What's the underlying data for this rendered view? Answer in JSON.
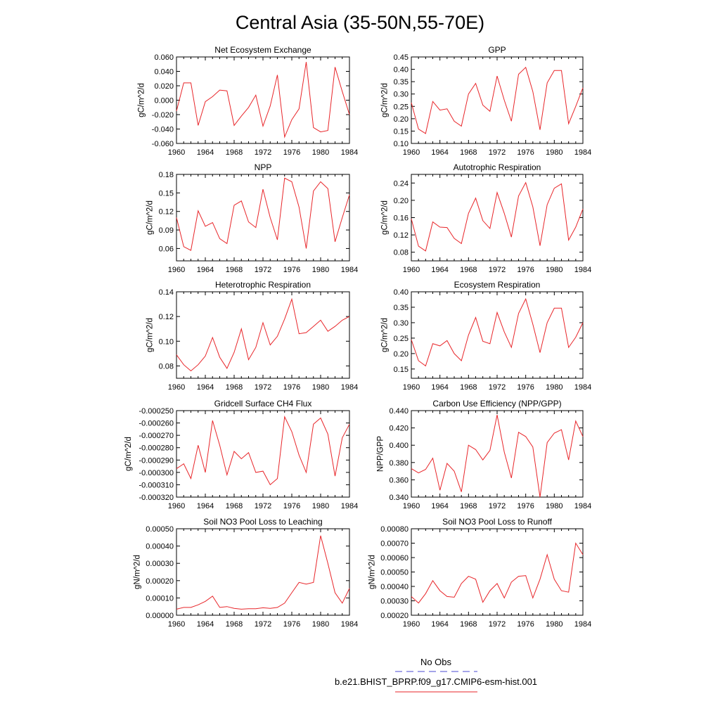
{
  "title": "Central Asia (35-50N,55-70E)",
  "legend": {
    "entries": [
      {
        "label": "No Obs",
        "color": "#4a4ad0",
        "style": "dashed"
      },
      {
        "label": "b.e21.BHIST_BPRP.f09_g17.CMIP6-esm-hist.001",
        "color": "#e8262a",
        "style": "solid"
      }
    ]
  },
  "chart_data": [
    {
      "type": "line",
      "title": "Net Ecosystem Exchange",
      "ylabel": "gC/m^2/d",
      "xlim": [
        1960,
        1984
      ],
      "ylim": [
        -0.06,
        0.06
      ],
      "xticks": [
        1960,
        1964,
        1968,
        1972,
        1976,
        1980,
        1984
      ],
      "yticks": [
        "-0.060",
        "-0.040",
        "-0.020",
        "0.000",
        "0.020",
        "0.040",
        "0.060"
      ],
      "ytick_values": [
        -0.06,
        -0.04,
        -0.02,
        0.0,
        0.02,
        0.04,
        0.06
      ],
      "x": [
        1960,
        1961,
        1962,
        1963,
        1964,
        1965,
        1966,
        1967,
        1968,
        1969,
        1970,
        1971,
        1972,
        1973,
        1974,
        1975,
        1976,
        1977,
        1978,
        1979,
        1980,
        1981,
        1982,
        1983,
        1984
      ],
      "series": [
        {
          "color": "#e8262a",
          "values": [
            -0.015,
            0.024,
            0.024,
            -0.035,
            -0.002,
            0.005,
            0.014,
            0.013,
            -0.035,
            -0.022,
            -0.01,
            0.007,
            -0.036,
            -0.008,
            0.035,
            -0.051,
            -0.027,
            -0.012,
            0.053,
            -0.038,
            -0.044,
            -0.042,
            0.046,
            0.012,
            -0.02
          ]
        }
      ]
    },
    {
      "type": "line",
      "title": "GPP",
      "ylabel": "gC/m^2/d",
      "xlim": [
        1960,
        1984
      ],
      "ylim": [
        0.1,
        0.45
      ],
      "xticks": [
        1960,
        1964,
        1968,
        1972,
        1976,
        1980,
        1984
      ],
      "yticks": [
        "0.10",
        "0.15",
        "0.20",
        "0.25",
        "0.30",
        "0.35",
        "0.40",
        "0.45"
      ],
      "ytick_values": [
        0.1,
        0.15,
        0.2,
        0.25,
        0.3,
        0.35,
        0.4,
        0.45
      ],
      "x": [
        1960,
        1961,
        1962,
        1963,
        1964,
        1965,
        1966,
        1967,
        1968,
        1969,
        1970,
        1971,
        1972,
        1973,
        1974,
        1975,
        1976,
        1977,
        1978,
        1979,
        1980,
        1981,
        1982,
        1983,
        1984
      ],
      "series": [
        {
          "color": "#e8262a",
          "values": [
            0.265,
            0.158,
            0.14,
            0.27,
            0.235,
            0.24,
            0.19,
            0.17,
            0.3,
            0.343,
            0.255,
            0.23,
            0.373,
            0.275,
            0.19,
            0.38,
            0.408,
            0.31,
            0.155,
            0.345,
            0.395,
            0.395,
            0.18,
            0.25,
            0.325
          ]
        }
      ]
    },
    {
      "type": "line",
      "title": "NPP",
      "ylabel": "gC/m^2/d",
      "xlim": [
        1960,
        1984
      ],
      "ylim": [
        0.04,
        0.18
      ],
      "xticks": [
        1960,
        1964,
        1968,
        1972,
        1976,
        1980,
        1984
      ],
      "yticks": [
        "0.06",
        "0.09",
        "0.12",
        "0.15",
        "0.18"
      ],
      "ytick_values": [
        0.06,
        0.09,
        0.12,
        0.15,
        0.18
      ],
      "x": [
        1960,
        1961,
        1962,
        1963,
        1964,
        1965,
        1966,
        1967,
        1968,
        1969,
        1970,
        1971,
        1972,
        1973,
        1974,
        1975,
        1976,
        1977,
        1978,
        1979,
        1980,
        1981,
        1982,
        1983,
        1984
      ],
      "series": [
        {
          "color": "#e8262a",
          "values": [
            0.11,
            0.063,
            0.057,
            0.121,
            0.096,
            0.102,
            0.076,
            0.068,
            0.13,
            0.137,
            0.103,
            0.094,
            0.156,
            0.11,
            0.074,
            0.174,
            0.168,
            0.127,
            0.06,
            0.153,
            0.168,
            0.157,
            0.071,
            0.11,
            0.147
          ]
        }
      ]
    },
    {
      "type": "line",
      "title": "Autotrophic Respiration",
      "ylabel": "gC/m^2/d",
      "xlim": [
        1960,
        1984
      ],
      "ylim": [
        0.06,
        0.26
      ],
      "xticks": [
        1960,
        1964,
        1968,
        1972,
        1976,
        1980,
        1984
      ],
      "yticks": [
        "0.08",
        "0.12",
        "0.16",
        "0.20",
        "0.24"
      ],
      "ytick_values": [
        0.08,
        0.12,
        0.16,
        0.2,
        0.24
      ],
      "x": [
        1960,
        1961,
        1962,
        1963,
        1964,
        1965,
        1966,
        1967,
        1968,
        1969,
        1970,
        1971,
        1972,
        1973,
        1974,
        1975,
        1976,
        1977,
        1978,
        1979,
        1980,
        1981,
        1982,
        1983,
        1984
      ],
      "series": [
        {
          "color": "#e8262a",
          "values": [
            0.157,
            0.094,
            0.083,
            0.15,
            0.138,
            0.137,
            0.112,
            0.1,
            0.17,
            0.205,
            0.153,
            0.135,
            0.218,
            0.17,
            0.115,
            0.21,
            0.241,
            0.185,
            0.095,
            0.19,
            0.228,
            0.238,
            0.108,
            0.138,
            0.18
          ]
        }
      ]
    },
    {
      "type": "line",
      "title": "Heterotrophic Respiration",
      "ylabel": "gC/m^2/d",
      "xlim": [
        1960,
        1984
      ],
      "ylim": [
        0.07,
        0.14
      ],
      "xticks": [
        1960,
        1964,
        1968,
        1972,
        1976,
        1980,
        1984
      ],
      "yticks": [
        "0.08",
        "0.10",
        "0.12",
        "0.14"
      ],
      "ytick_values": [
        0.08,
        0.1,
        0.12,
        0.14
      ],
      "x": [
        1960,
        1961,
        1962,
        1963,
        1964,
        1965,
        1966,
        1967,
        1968,
        1969,
        1970,
        1971,
        1972,
        1973,
        1974,
        1975,
        1976,
        1977,
        1978,
        1979,
        1980,
        1981,
        1982,
        1983,
        1984
      ],
      "series": [
        {
          "color": "#e8262a",
          "values": [
            0.089,
            0.081,
            0.076,
            0.081,
            0.088,
            0.103,
            0.087,
            0.078,
            0.091,
            0.11,
            0.085,
            0.095,
            0.115,
            0.097,
            0.104,
            0.118,
            0.134,
            0.106,
            0.107,
            0.112,
            0.117,
            0.108,
            0.112,
            0.117,
            0.12
          ]
        }
      ]
    },
    {
      "type": "line",
      "title": "Ecosystem Respiration",
      "ylabel": "gC/m^2/d",
      "xlim": [
        1960,
        1984
      ],
      "ylim": [
        0.12,
        0.4
      ],
      "xticks": [
        1960,
        1964,
        1968,
        1972,
        1976,
        1980,
        1984
      ],
      "yticks": [
        "0.15",
        "0.20",
        "0.25",
        "0.30",
        "0.35",
        "0.40"
      ],
      "ytick_values": [
        0.15,
        0.2,
        0.25,
        0.3,
        0.35,
        0.4
      ],
      "x": [
        1960,
        1961,
        1962,
        1963,
        1964,
        1965,
        1966,
        1967,
        1968,
        1969,
        1970,
        1971,
        1972,
        1973,
        1974,
        1975,
        1976,
        1977,
        1978,
        1979,
        1980,
        1981,
        1982,
        1983,
        1984
      ],
      "series": [
        {
          "color": "#e8262a",
          "values": [
            0.245,
            0.177,
            0.16,
            0.232,
            0.225,
            0.242,
            0.2,
            0.177,
            0.26,
            0.317,
            0.24,
            0.232,
            0.333,
            0.27,
            0.22,
            0.33,
            0.377,
            0.295,
            0.203,
            0.3,
            0.347,
            0.347,
            0.22,
            0.253,
            0.3
          ]
        }
      ]
    },
    {
      "type": "line",
      "title": "Gridcell Surface CH4 Flux",
      "ylabel": "gC/m^2/d",
      "xlim": [
        1960,
        1984
      ],
      "ylim": [
        -0.00032,
        -0.00025
      ],
      "xticks": [
        1960,
        1964,
        1968,
        1972,
        1976,
        1980,
        1984
      ],
      "yticks": [
        "-0.000320",
        "-0.000310",
        "-0.000300",
        "-0.000290",
        "-0.000280",
        "-0.000270",
        "-0.000260",
        "-0.000250"
      ],
      "ytick_values": [
        -0.00032,
        -0.00031,
        -0.0003,
        -0.00029,
        -0.00028,
        -0.00027,
        -0.00026,
        -0.00025
      ],
      "x": [
        1960,
        1961,
        1962,
        1963,
        1964,
        1965,
        1966,
        1967,
        1968,
        1969,
        1970,
        1971,
        1972,
        1973,
        1974,
        1975,
        1976,
        1977,
        1978,
        1979,
        1980,
        1981,
        1982,
        1983,
        1984
      ],
      "series": [
        {
          "color": "#e8262a",
          "values": [
            -0.000297,
            -0.000293,
            -0.000305,
            -0.000278,
            -0.0003,
            -0.000258,
            -0.000278,
            -0.000302,
            -0.000283,
            -0.000289,
            -0.000284,
            -0.0003,
            -0.000299,
            -0.00031,
            -0.000305,
            -0.000255,
            -0.000267,
            -0.000286,
            -0.0003,
            -0.000261,
            -0.000256,
            -0.000269,
            -0.000303,
            -0.000272,
            -0.000261
          ]
        }
      ]
    },
    {
      "type": "line",
      "title": "Carbon Use Efficiency (NPP/GPP)",
      "ylabel": "NPP/GPP",
      "xlim": [
        1960,
        1984
      ],
      "ylim": [
        0.34,
        0.44
      ],
      "xticks": [
        1960,
        1964,
        1968,
        1972,
        1976,
        1980,
        1984
      ],
      "yticks": [
        "0.340",
        "0.360",
        "0.380",
        "0.400",
        "0.420",
        "0.440"
      ],
      "ytick_values": [
        0.34,
        0.36,
        0.38,
        0.4,
        0.42,
        0.44
      ],
      "x": [
        1960,
        1961,
        1962,
        1963,
        1964,
        1965,
        1966,
        1967,
        1968,
        1969,
        1970,
        1971,
        1972,
        1973,
        1974,
        1975,
        1976,
        1977,
        1978,
        1979,
        1980,
        1981,
        1982,
        1983,
        1984
      ],
      "series": [
        {
          "color": "#e8262a",
          "values": [
            0.373,
            0.368,
            0.372,
            0.385,
            0.348,
            0.379,
            0.37,
            0.346,
            0.4,
            0.395,
            0.383,
            0.394,
            0.435,
            0.392,
            0.362,
            0.415,
            0.41,
            0.398,
            0.34,
            0.403,
            0.414,
            0.418,
            0.383,
            0.428,
            0.41
          ]
        }
      ]
    },
    {
      "type": "line",
      "title": "Soil NO3 Pool Loss to Leaching",
      "ylabel": "gN/m^2/d",
      "xlim": [
        1960,
        1984
      ],
      "ylim": [
        0.0,
        0.0005
      ],
      "xticks": [
        1960,
        1964,
        1968,
        1972,
        1976,
        1980,
        1984
      ],
      "yticks": [
        "0.00000",
        "0.00010",
        "0.00020",
        "0.00030",
        "0.00040",
        "0.00050"
      ],
      "ytick_values": [
        0.0,
        0.0001,
        0.0002,
        0.0003,
        0.0004,
        0.0005
      ],
      "x": [
        1960,
        1961,
        1962,
        1963,
        1964,
        1965,
        1966,
        1967,
        1968,
        1969,
        1970,
        1971,
        1972,
        1973,
        1974,
        1975,
        1976,
        1977,
        1978,
        1979,
        1980,
        1981,
        1982,
        1983,
        1984
      ],
      "series": [
        {
          "color": "#e8262a",
          "values": [
            3.5e-05,
            4.5e-05,
            4.5e-05,
            6e-05,
            8e-05,
            0.00011,
            4.5e-05,
            5e-05,
            4e-05,
            3.5e-05,
            3.8e-05,
            3.8e-05,
            4.3e-05,
            4e-05,
            4.5e-05,
            7e-05,
            0.00013,
            0.00019,
            0.00018,
            0.00019,
            0.00046,
            0.0003,
            0.00013,
            7e-05,
            0.000155
          ]
        }
      ]
    },
    {
      "type": "line",
      "title": "Soil NO3 Pool Loss to Runoff",
      "ylabel": "gN/m^2/d",
      "xlim": [
        1960,
        1984
      ],
      "ylim": [
        0.0002,
        0.0008
      ],
      "xticks": [
        1960,
        1964,
        1968,
        1972,
        1976,
        1980,
        1984
      ],
      "yticks": [
        "0.00020",
        "0.00030",
        "0.00040",
        "0.00050",
        "0.00060",
        "0.00070",
        "0.00080"
      ],
      "ytick_values": [
        0.0002,
        0.0003,
        0.0004,
        0.0005,
        0.0006,
        0.0007,
        0.0008
      ],
      "x": [
        1960,
        1961,
        1962,
        1963,
        1964,
        1965,
        1966,
        1967,
        1968,
        1969,
        1970,
        1971,
        1972,
        1973,
        1974,
        1975,
        1976,
        1977,
        1978,
        1979,
        1980,
        1981,
        1982,
        1983,
        1984
      ],
      "series": [
        {
          "color": "#e8262a",
          "values": [
            0.00033,
            0.000285,
            0.00035,
            0.00044,
            0.00037,
            0.00033,
            0.000325,
            0.00042,
            0.00047,
            0.00045,
            0.00029,
            0.00037,
            0.00042,
            0.00032,
            0.00043,
            0.00047,
            0.000475,
            0.00032,
            0.00045,
            0.00062,
            0.00045,
            0.00037,
            0.00036,
            0.0007,
            0.00062
          ]
        }
      ]
    }
  ]
}
